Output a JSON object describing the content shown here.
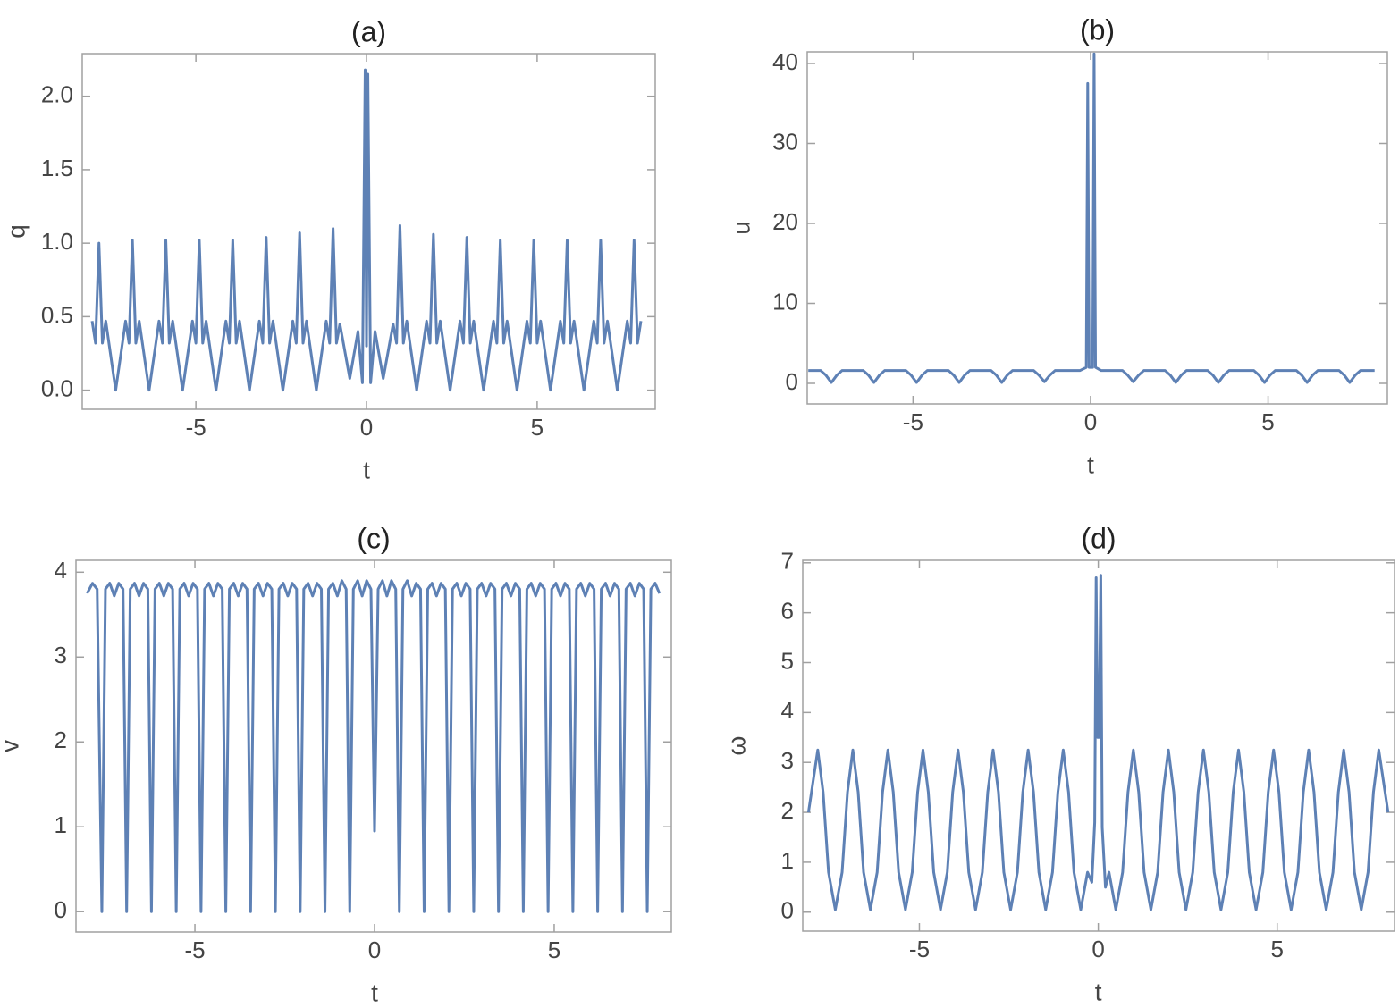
{
  "chart_data": [
    {
      "type": "line",
      "title": "(a)",
      "x_label": "t",
      "y_label": "q",
      "xlim": [
        -8.33,
        8.46
      ],
      "ylim": [
        -0.13,
        2.29
      ],
      "xticks": [
        -5,
        0,
        5
      ],
      "yticks": [
        {
          "value": 0,
          "label": "0.0"
        },
        0.5,
        {
          "value": 1,
          "label": "1.0"
        },
        1.5,
        {
          "value": 2,
          "label": "2.0"
        }
      ],
      "color": "#5e81b5",
      "x": [
        -8.04,
        -7.94,
        -7.84,
        -7.74,
        -7.64,
        -7.35,
        -7.06,
        -6.96,
        -6.86,
        -6.76,
        -6.66,
        -6.37,
        -6.08,
        -5.98,
        -5.88,
        -5.78,
        -5.68,
        -5.39,
        -5.1,
        -5.0,
        -4.9,
        -4.8,
        -4.7,
        -4.41,
        -4.12,
        -4.02,
        -3.92,
        -3.82,
        -3.72,
        -3.43,
        -3.14,
        -3.04,
        -2.94,
        -2.84,
        -2.74,
        -2.45,
        -2.16,
        -2.06,
        -1.96,
        -1.86,
        -1.76,
        -1.47,
        -1.18,
        -1.08,
        -0.98,
        -0.88,
        -0.78,
        -0.49,
        -0.25,
        -0.12,
        -0.04,
        0,
        0.04,
        0.12,
        0.25,
        0.49,
        0.78,
        0.88,
        0.98,
        1.08,
        1.18,
        1.47,
        1.76,
        1.86,
        1.96,
        2.06,
        2.16,
        2.45,
        2.74,
        2.84,
        2.94,
        3.04,
        3.14,
        3.43,
        3.72,
        3.82,
        3.92,
        4.02,
        4.12,
        4.41,
        4.7,
        4.8,
        4.9,
        5.0,
        5.1,
        5.39,
        5.68,
        5.78,
        5.88,
        5.98,
        6.08,
        6.37,
        6.66,
        6.76,
        6.86,
        6.96,
        7.06,
        7.35,
        7.64,
        7.74,
        7.84,
        7.94,
        8.04
      ],
      "values": [
        0.47,
        0.32,
        1.0,
        0.32,
        0.47,
        0.0,
        0.47,
        0.32,
        1.02,
        0.32,
        0.47,
        0.0,
        0.47,
        0.32,
        1.02,
        0.32,
        0.47,
        0.0,
        0.47,
        0.32,
        1.02,
        0.32,
        0.47,
        0.0,
        0.47,
        0.32,
        1.02,
        0.32,
        0.47,
        0.0,
        0.47,
        0.32,
        1.04,
        0.32,
        0.47,
        0.0,
        0.47,
        0.32,
        1.07,
        0.32,
        0.47,
        0.0,
        0.47,
        0.32,
        1.1,
        0.32,
        0.45,
        0.08,
        0.4,
        0.05,
        2.18,
        0.3,
        2.15,
        0.05,
        0.4,
        0.08,
        0.45,
        0.32,
        1.12,
        0.32,
        0.47,
        0.0,
        0.47,
        0.32,
        1.06,
        0.32,
        0.47,
        0.0,
        0.47,
        0.32,
        1.04,
        0.32,
        0.47,
        0.0,
        0.47,
        0.32,
        1.02,
        0.32,
        0.47,
        0.0,
        0.47,
        0.32,
        1.02,
        0.32,
        0.47,
        0.0,
        0.47,
        0.32,
        1.02,
        0.32,
        0.47,
        0.0,
        0.47,
        0.32,
        1.02,
        0.32,
        0.47,
        0.0,
        0.47,
        0.32,
        1.02,
        0.32,
        0.47
      ]
    },
    {
      "type": "line",
      "title": "(b)",
      "x_label": "t",
      "y_label": "u",
      "xlim": [
        -7.98,
        8.36
      ],
      "ylim": [
        -2.57,
        41.45
      ],
      "xticks": [
        -5,
        0,
        5
      ],
      "yticks": [
        0,
        10,
        20,
        30,
        40
      ],
      "color": "#5e81b5",
      "x": [
        -7.95,
        -7.6,
        -7.45,
        -7.3,
        -7.15,
        -7.0,
        -6.4,
        -6.25,
        -6.1,
        -5.95,
        -5.8,
        -5.2,
        -5.05,
        -4.9,
        -4.75,
        -4.6,
        -4.0,
        -3.85,
        -3.7,
        -3.55,
        -3.4,
        -2.8,
        -2.65,
        -2.5,
        -2.35,
        -2.2,
        -1.6,
        -1.45,
        -1.3,
        -1.15,
        -1.0,
        -0.3,
        -0.12,
        -0.08,
        -0.04,
        0.06,
        0.1,
        0.14,
        0.3,
        0.9,
        1.05,
        1.2,
        1.35,
        1.5,
        2.1,
        2.25,
        2.4,
        2.55,
        2.7,
        3.3,
        3.45,
        3.6,
        3.75,
        3.9,
        4.6,
        4.75,
        4.9,
        5.05,
        5.2,
        5.8,
        5.95,
        6.1,
        6.25,
        6.4,
        7.0,
        7.15,
        7.3,
        7.45,
        7.6,
        8.0
      ],
      "values": [
        1.6,
        1.6,
        1.0,
        0.1,
        1.0,
        1.6,
        1.6,
        1.0,
        0.1,
        1.0,
        1.6,
        1.6,
        1.0,
        0.1,
        1.0,
        1.6,
        1.6,
        1.0,
        0.1,
        1.0,
        1.6,
        1.6,
        1.0,
        0.1,
        1.0,
        1.6,
        1.6,
        1.0,
        0.2,
        1.0,
        1.6,
        1.6,
        2.0,
        37.5,
        2.0,
        2.0,
        41.2,
        2.0,
        1.6,
        1.6,
        1.0,
        0.2,
        1.0,
        1.6,
        1.6,
        1.0,
        0.1,
        1.0,
        1.6,
        1.6,
        1.0,
        0.1,
        1.0,
        1.6,
        1.6,
        1.0,
        0.1,
        1.0,
        1.6,
        1.6,
        1.0,
        0.1,
        1.0,
        1.6,
        1.6,
        1.0,
        0.1,
        1.0,
        1.6,
        1.6
      ]
    },
    {
      "type": "line",
      "title": "(c)",
      "x_label": "t",
      "y_label": "v",
      "xlim": [
        -8.31,
        8.26
      ],
      "ylim": [
        -0.24,
        4.14
      ],
      "xticks": [
        -5,
        0,
        5
      ],
      "yticks": [
        0,
        1,
        2,
        3,
        4
      ],
      "color": "#5e81b5",
      "x": [
        -8.0,
        -7.85,
        -7.72,
        -7.59,
        -7.49,
        -7.37,
        -7.245,
        -7.12,
        -7.0,
        -6.9,
        -6.8,
        -6.68,
        -6.555,
        -6.43,
        -6.31,
        -6.21,
        -6.11,
        -5.99,
        -5.865,
        -5.74,
        -5.62,
        -5.52,
        -5.42,
        -5.3,
        -5.175,
        -5.05,
        -4.93,
        -4.83,
        -4.73,
        -4.61,
        -4.485,
        -4.36,
        -4.24,
        -4.14,
        -4.04,
        -3.92,
        -3.795,
        -3.67,
        -3.55,
        -3.45,
        -3.35,
        -3.23,
        -3.105,
        -2.98,
        -2.86,
        -2.76,
        -2.66,
        -2.54,
        -2.415,
        -2.29,
        -2.17,
        -2.07,
        -1.97,
        -1.85,
        -1.725,
        -1.6,
        -1.48,
        -1.38,
        -1.28,
        -1.16,
        -1.035,
        -0.91,
        -0.79,
        -0.69,
        -0.59,
        -0.47,
        -0.345,
        -0.22,
        -0.1,
        0,
        0.1,
        0.22,
        0.345,
        0.47,
        0.59,
        0.69,
        0.79,
        0.91,
        1.035,
        1.16,
        1.28,
        1.38,
        1.48,
        1.6,
        1.725,
        1.85,
        1.97,
        2.07,
        2.17,
        2.29,
        2.415,
        2.54,
        2.66,
        2.76,
        2.86,
        2.98,
        3.105,
        3.23,
        3.35,
        3.45,
        3.55,
        3.67,
        3.795,
        3.92,
        4.04,
        4.14,
        4.24,
        4.36,
        4.485,
        4.61,
        4.73,
        4.83,
        4.93,
        5.05,
        5.175,
        5.3,
        5.42,
        5.52,
        5.62,
        5.74,
        5.865,
        5.99,
        6.11,
        6.21,
        6.31,
        6.43,
        6.555,
        6.68,
        6.8,
        6.9,
        7.0,
        7.12,
        7.245,
        7.37,
        7.49,
        7.59,
        7.69,
        7.81,
        7.93
      ],
      "values": [
        3.75,
        3.87,
        3.8,
        0,
        3.8,
        3.87,
        3.72,
        3.87,
        3.8,
        0,
        3.8,
        3.87,
        3.72,
        3.87,
        3.8,
        0,
        3.8,
        3.87,
        3.72,
        3.87,
        3.8,
        0,
        3.8,
        3.87,
        3.72,
        3.87,
        3.8,
        0,
        3.8,
        3.87,
        3.72,
        3.87,
        3.8,
        0,
        3.8,
        3.87,
        3.72,
        3.87,
        3.8,
        0,
        3.8,
        3.87,
        3.72,
        3.87,
        3.8,
        0,
        3.8,
        3.87,
        3.72,
        3.87,
        3.8,
        0,
        3.8,
        3.87,
        3.72,
        3.87,
        3.8,
        0,
        3.8,
        3.87,
        3.72,
        3.9,
        3.8,
        0,
        3.8,
        3.9,
        3.72,
        3.9,
        3.8,
        0.95,
        3.8,
        3.9,
        3.72,
        3.9,
        3.8,
        0,
        3.8,
        3.9,
        3.72,
        3.87,
        3.8,
        0,
        3.8,
        3.87,
        3.72,
        3.87,
        3.8,
        0,
        3.8,
        3.87,
        3.72,
        3.87,
        3.8,
        0,
        3.8,
        3.87,
        3.72,
        3.87,
        3.8,
        0,
        3.8,
        3.87,
        3.72,
        3.87,
        3.8,
        0,
        3.8,
        3.87,
        3.72,
        3.87,
        3.8,
        0,
        3.8,
        3.87,
        3.72,
        3.87,
        3.8,
        0,
        3.8,
        3.87,
        3.72,
        3.87,
        3.8,
        0,
        3.8,
        3.87,
        3.72,
        3.87,
        3.8,
        0,
        3.8,
        3.87,
        3.72,
        3.87,
        3.8,
        0,
        3.8,
        3.87,
        3.75
      ]
    },
    {
      "type": "line",
      "title": "(d)",
      "x_label": "t",
      "y_label": "ω",
      "xlim": [
        -8.26,
        8.28
      ],
      "ylim": [
        -0.38,
        7.05
      ],
      "xticks": [
        -5,
        0,
        5
      ],
      "yticks": [
        0,
        1,
        2,
        3,
        4,
        5,
        6,
        7
      ],
      "color": "#5e81b5",
      "x": [
        -8.1,
        -7.84,
        -7.69,
        -7.54,
        -7.35,
        -7.16,
        -7.01,
        -6.86,
        -6.71,
        -6.56,
        -6.37,
        -6.18,
        -6.03,
        -5.88,
        -5.73,
        -5.58,
        -5.39,
        -5.2,
        -5.05,
        -4.9,
        -4.75,
        -4.6,
        -4.41,
        -4.22,
        -4.07,
        -3.92,
        -3.77,
        -3.62,
        -3.43,
        -3.24,
        -3.09,
        -2.94,
        -2.79,
        -2.64,
        -2.45,
        -2.26,
        -2.11,
        -1.96,
        -1.81,
        -1.66,
        -1.47,
        -1.28,
        -1.13,
        -0.98,
        -0.83,
        -0.68,
        -0.49,
        -0.3,
        -0.18,
        -0.1,
        -0.06,
        -0.02,
        0.02,
        0.07,
        0.11,
        0.2,
        0.3,
        0.49,
        0.68,
        0.83,
        0.98,
        1.13,
        1.28,
        1.47,
        1.66,
        1.81,
        1.96,
        2.11,
        2.26,
        2.45,
        2.64,
        2.79,
        2.94,
        3.09,
        3.24,
        3.43,
        3.62,
        3.77,
        3.92,
        4.07,
        4.22,
        4.41,
        4.6,
        4.75,
        4.9,
        5.05,
        5.2,
        5.39,
        5.58,
        5.73,
        5.88,
        6.03,
        6.18,
        6.37,
        6.56,
        6.71,
        6.86,
        7.01,
        7.16,
        7.35,
        7.54,
        7.69,
        7.84,
        8.1
      ],
      "values": [
        2.0,
        3.25,
        2.4,
        0.8,
        0.05,
        0.8,
        2.4,
        3.25,
        2.4,
        0.8,
        0.05,
        0.8,
        2.4,
        3.25,
        2.4,
        0.8,
        0.05,
        0.8,
        2.4,
        3.25,
        2.4,
        0.8,
        0.05,
        0.8,
        2.4,
        3.25,
        2.4,
        0.8,
        0.05,
        0.8,
        2.4,
        3.25,
        2.4,
        0.8,
        0.05,
        0.8,
        2.4,
        3.25,
        2.4,
        0.8,
        0.05,
        0.8,
        2.4,
        3.25,
        2.4,
        0.8,
        0.05,
        0.8,
        0.6,
        1.8,
        6.7,
        3.5,
        3.5,
        6.75,
        1.7,
        0.5,
        0.8,
        0.05,
        0.8,
        2.4,
        3.25,
        2.4,
        0.8,
        0.05,
        0.8,
        2.4,
        3.25,
        2.4,
        0.8,
        0.05,
        0.8,
        2.4,
        3.25,
        2.4,
        0.8,
        0.05,
        0.8,
        2.4,
        3.25,
        2.4,
        0.8,
        0.05,
        0.8,
        2.4,
        3.25,
        2.4,
        0.8,
        0.05,
        0.8,
        2.4,
        3.25,
        2.4,
        0.8,
        0.05,
        0.8,
        2.4,
        3.25,
        2.4,
        0.8,
        0.05,
        0.8,
        2.4,
        3.25,
        2.0
      ]
    }
  ]
}
